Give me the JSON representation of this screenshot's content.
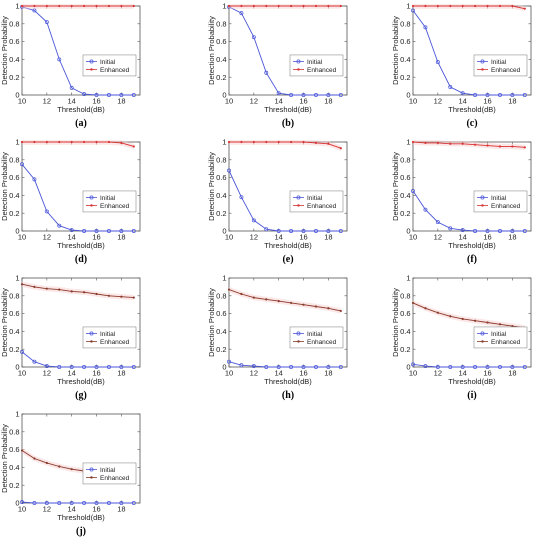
{
  "chart_data": [
    {
      "type": "line",
      "panel_label": "(a)",
      "x": [
        10,
        11,
        12,
        13,
        14,
        15,
        16,
        17,
        18,
        19
      ],
      "xlabel": "Threshold(dB)",
      "ylabel": "Detection Probability",
      "xlim": [
        10,
        19.5
      ],
      "ylim": [
        0,
        1
      ],
      "xticks": [
        10,
        12,
        14,
        16,
        18
      ],
      "yticks": [
        0,
        0.2,
        0.4,
        0.6,
        0.8,
        1
      ],
      "legend_position": "right-middle",
      "series": [
        {
          "name": "Initial",
          "color": "#4a56d8",
          "marker": "circle",
          "values": [
            0.99,
            0.95,
            0.82,
            0.4,
            0.08,
            0.01,
            0.0,
            0.0,
            0.0,
            0.0
          ]
        },
        {
          "name": "Enhanced",
          "color": "#d83232",
          "marker": "dot",
          "values": [
            1.0,
            1.0,
            1.0,
            1.0,
            1.0,
            1.0,
            1.0,
            1.0,
            1.0,
            1.0
          ]
        }
      ]
    },
    {
      "type": "line",
      "panel_label": "(b)",
      "x": [
        10,
        11,
        12,
        13,
        14,
        15,
        16,
        17,
        18,
        19
      ],
      "xlabel": "Threshold(dB)",
      "ylabel": "Detection Probability",
      "xlim": [
        10,
        19.5
      ],
      "ylim": [
        0,
        1
      ],
      "xticks": [
        10,
        12,
        14,
        16,
        18
      ],
      "yticks": [
        0,
        0.2,
        0.4,
        0.6,
        0.8,
        1
      ],
      "legend_position": "right-middle",
      "series": [
        {
          "name": "Initial",
          "color": "#4a56d8",
          "marker": "circle",
          "values": [
            0.99,
            0.92,
            0.65,
            0.25,
            0.02,
            0.0,
            0.0,
            0.0,
            0.0,
            0.0
          ]
        },
        {
          "name": "Enhanced",
          "color": "#d83232",
          "marker": "dot",
          "values": [
            1.0,
            1.0,
            1.0,
            1.0,
            1.0,
            1.0,
            1.0,
            1.0,
            1.0,
            1.0
          ]
        }
      ]
    },
    {
      "type": "line",
      "panel_label": "(c)",
      "x": [
        10,
        11,
        12,
        13,
        14,
        15,
        16,
        17,
        18,
        19
      ],
      "xlabel": "Threshold(dB)",
      "ylabel": "Detection Probability",
      "xlim": [
        10,
        19.5
      ],
      "ylim": [
        0,
        1
      ],
      "xticks": [
        10,
        12,
        14,
        16,
        18
      ],
      "yticks": [
        0,
        0.2,
        0.4,
        0.6,
        0.8,
        1
      ],
      "legend_position": "right-middle",
      "series": [
        {
          "name": "Initial",
          "color": "#4a56d8",
          "marker": "circle",
          "values": [
            0.95,
            0.76,
            0.37,
            0.09,
            0.02,
            0.0,
            0.0,
            0.0,
            0.0,
            0.0
          ]
        },
        {
          "name": "Enhanced",
          "color": "#d83232",
          "marker": "dot",
          "values": [
            1.0,
            1.0,
            1.0,
            1.0,
            1.0,
            1.0,
            1.0,
            1.0,
            1.0,
            0.97
          ]
        }
      ]
    },
    {
      "type": "line",
      "panel_label": "(d)",
      "x": [
        10,
        11,
        12,
        13,
        14,
        15,
        16,
        17,
        18,
        19
      ],
      "xlabel": "Threshold(dB)",
      "ylabel": "Detection Probability",
      "xlim": [
        10,
        19.5
      ],
      "ylim": [
        0,
        1
      ],
      "xticks": [
        10,
        12,
        14,
        16,
        18
      ],
      "yticks": [
        0,
        0.2,
        0.4,
        0.6,
        0.8,
        1
      ],
      "legend_position": "right-middle",
      "series": [
        {
          "name": "Initial",
          "color": "#4a56d8",
          "marker": "circle",
          "values": [
            0.75,
            0.58,
            0.22,
            0.06,
            0.01,
            0.0,
            0.0,
            0.0,
            0.0,
            0.0
          ]
        },
        {
          "name": "Enhanced",
          "color": "#d83232",
          "marker": "dot",
          "values": [
            1.0,
            1.0,
            1.0,
            1.0,
            1.0,
            1.0,
            1.0,
            1.0,
            0.99,
            0.95
          ]
        }
      ]
    },
    {
      "type": "line",
      "panel_label": "(e)",
      "x": [
        10,
        11,
        12,
        13,
        14,
        15,
        16,
        17,
        18,
        19
      ],
      "xlabel": "Threshold(dB)",
      "ylabel": "Detection Probability",
      "xlim": [
        10,
        19.5
      ],
      "ylim": [
        0,
        1
      ],
      "xticks": [
        10,
        12,
        14,
        16,
        18
      ],
      "yticks": [
        0,
        0.2,
        0.4,
        0.6,
        0.8,
        1
      ],
      "legend_position": "right-middle",
      "series": [
        {
          "name": "Initial",
          "color": "#4a56d8",
          "marker": "circle",
          "values": [
            0.68,
            0.38,
            0.12,
            0.02,
            0.0,
            0.0,
            0.0,
            0.0,
            0.0,
            0.0
          ]
        },
        {
          "name": "Enhanced",
          "color": "#d83232",
          "marker": "dot",
          "values": [
            1.0,
            1.0,
            1.0,
            1.0,
            1.0,
            1.0,
            1.0,
            0.99,
            0.98,
            0.93
          ]
        }
      ]
    },
    {
      "type": "line",
      "panel_label": "(f)",
      "x": [
        10,
        11,
        12,
        13,
        14,
        15,
        16,
        17,
        18,
        19
      ],
      "xlabel": "Threshold(dB)",
      "ylabel": "Detection Probability",
      "xlim": [
        10,
        19.5
      ],
      "ylim": [
        0,
        1
      ],
      "xticks": [
        10,
        12,
        14,
        16,
        18
      ],
      "yticks": [
        0,
        0.2,
        0.4,
        0.6,
        0.8,
        1
      ],
      "legend_position": "right-middle",
      "series": [
        {
          "name": "Initial",
          "color": "#4a56d8",
          "marker": "circle",
          "values": [
            0.45,
            0.24,
            0.1,
            0.03,
            0.01,
            0.0,
            0.0,
            0.0,
            0.0,
            0.0
          ]
        },
        {
          "name": "Enhanced",
          "color": "#d83232",
          "marker": "dot",
          "values": [
            1.0,
            0.99,
            0.99,
            0.98,
            0.98,
            0.97,
            0.96,
            0.95,
            0.95,
            0.94
          ]
        }
      ]
    },
    {
      "type": "line",
      "panel_label": "(g)",
      "x": [
        10,
        11,
        12,
        13,
        14,
        15,
        16,
        17,
        18,
        19
      ],
      "xlabel": "Threshold(dB)",
      "ylabel": "Detection Probability",
      "xlim": [
        10,
        19.5
      ],
      "ylim": [
        0,
        1
      ],
      "xticks": [
        10,
        12,
        14,
        16,
        18
      ],
      "yticks": [
        0,
        0.2,
        0.4,
        0.6,
        0.8,
        1
      ],
      "legend_position": "right-middle",
      "series": [
        {
          "name": "Initial",
          "color": "#4a56d8",
          "marker": "circle",
          "values": [
            0.17,
            0.06,
            0.01,
            0.0,
            0.0,
            0.0,
            0.0,
            0.0,
            0.0,
            0.0
          ]
        },
        {
          "name": "Enhanced",
          "color": "#8a3a2a",
          "marker": "dot",
          "values": [
            0.93,
            0.9,
            0.88,
            0.87,
            0.85,
            0.84,
            0.82,
            0.8,
            0.79,
            0.78
          ]
        }
      ]
    },
    {
      "type": "line",
      "panel_label": "(h)",
      "x": [
        10,
        11,
        12,
        13,
        14,
        15,
        16,
        17,
        18,
        19
      ],
      "xlabel": "Threshold(dB)",
      "ylabel": "Detection Probability",
      "xlim": [
        10,
        19.5
      ],
      "ylim": [
        0,
        1
      ],
      "xticks": [
        10,
        12,
        14,
        16,
        18
      ],
      "yticks": [
        0,
        0.2,
        0.4,
        0.6,
        0.8,
        1
      ],
      "legend_position": "right-middle",
      "series": [
        {
          "name": "Initial",
          "color": "#4a56d8",
          "marker": "circle",
          "values": [
            0.06,
            0.02,
            0.01,
            0.0,
            0.0,
            0.0,
            0.0,
            0.0,
            0.0,
            0.0
          ]
        },
        {
          "name": "Enhanced",
          "color": "#8a3a2a",
          "marker": "dot",
          "values": [
            0.87,
            0.82,
            0.78,
            0.76,
            0.74,
            0.72,
            0.7,
            0.68,
            0.66,
            0.63
          ]
        }
      ]
    },
    {
      "type": "line",
      "panel_label": "(i)",
      "x": [
        10,
        11,
        12,
        13,
        14,
        15,
        16,
        17,
        18,
        19
      ],
      "xlabel": "Threshold(dB)",
      "ylabel": "Detection Probability",
      "xlim": [
        10,
        19.5
      ],
      "ylim": [
        0,
        1
      ],
      "xticks": [
        10,
        12,
        14,
        16,
        18
      ],
      "yticks": [
        0,
        0.2,
        0.4,
        0.6,
        0.8,
        1
      ],
      "legend_position": "right-middle",
      "series": [
        {
          "name": "Initial",
          "color": "#4a56d8",
          "marker": "circle",
          "values": [
            0.03,
            0.01,
            0.0,
            0.0,
            0.0,
            0.0,
            0.0,
            0.0,
            0.0,
            0.0
          ]
        },
        {
          "name": "Enhanced",
          "color": "#8a3a2a",
          "marker": "dot",
          "values": [
            0.72,
            0.66,
            0.61,
            0.57,
            0.54,
            0.52,
            0.5,
            0.48,
            0.46,
            0.44
          ]
        }
      ]
    },
    {
      "type": "line",
      "panel_label": "(j)",
      "x": [
        10,
        11,
        12,
        13,
        14,
        15,
        16,
        17,
        18,
        19
      ],
      "xlabel": "Threshold(dB)",
      "ylabel": "Detection Probability",
      "xlim": [
        10,
        19.5
      ],
      "ylim": [
        0,
        1
      ],
      "xticks": [
        10,
        12,
        14,
        16,
        18
      ],
      "yticks": [
        0,
        0.2,
        0.4,
        0.6,
        0.8,
        1
      ],
      "legend_position": "right-middle",
      "series": [
        {
          "name": "Initial",
          "color": "#4a56d8",
          "marker": "circle",
          "values": [
            0.01,
            0.0,
            0.0,
            0.0,
            0.0,
            0.0,
            0.0,
            0.0,
            0.0,
            0.0
          ]
        },
        {
          "name": "Enhanced",
          "color": "#8a3a2a",
          "marker": "dot",
          "values": [
            0.59,
            0.5,
            0.45,
            0.41,
            0.38,
            0.36,
            0.34,
            0.32,
            0.29,
            0.27
          ]
        }
      ]
    }
  ]
}
